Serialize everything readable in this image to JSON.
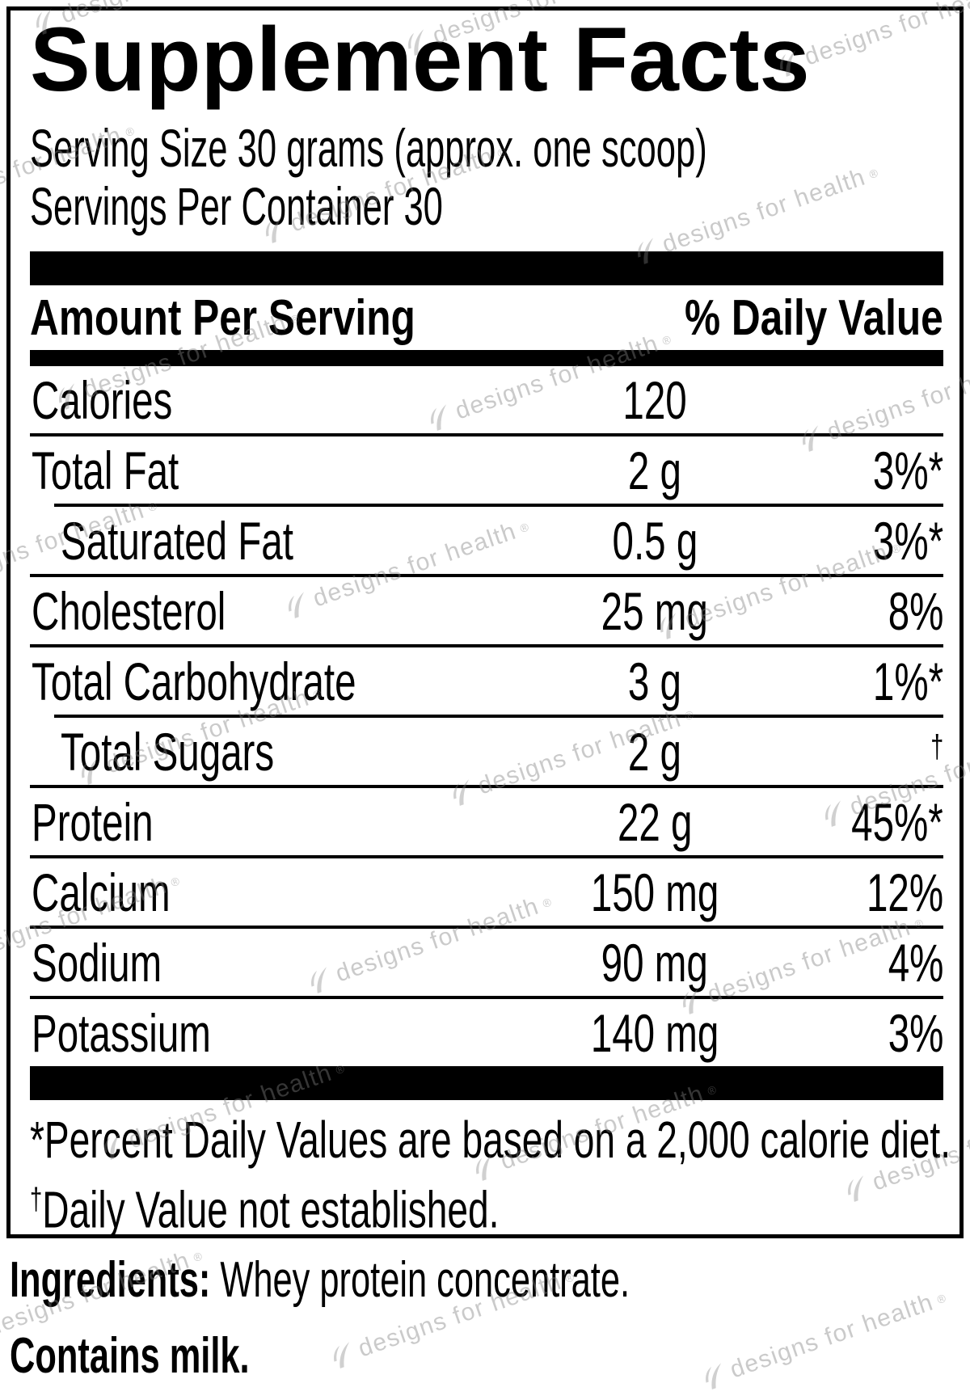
{
  "title": "Supplement Facts",
  "serving": {
    "size_line": "Serving Size 30 grams (approx. one scoop)",
    "per_container_line": "Servings Per Container 30"
  },
  "table": {
    "header": {
      "amount_label": "Amount Per Serving",
      "dv_label": "% Daily Value"
    },
    "rows": [
      {
        "name": "Calories",
        "amount": "120",
        "dv": "",
        "indent": false
      },
      {
        "name": "Total Fat",
        "amount": "2 g",
        "dv": "3%*",
        "indent": false
      },
      {
        "name": "Saturated Fat",
        "amount": "0.5 g",
        "dv": "3%*",
        "indent": true
      },
      {
        "name": "Cholesterol",
        "amount": "25 mg",
        "dv": "8%",
        "indent": false
      },
      {
        "name": "Total Carbohydrate",
        "amount": "3 g",
        "dv": "1%*",
        "indent": false
      },
      {
        "name": "Total Sugars",
        "amount": "2 g",
        "dv": "†",
        "indent": true
      },
      {
        "name": "Protein",
        "amount": "22 g",
        "dv": "45%*",
        "indent": false
      },
      {
        "name": "Calcium",
        "amount": "150 mg",
        "dv": "12%",
        "indent": false
      },
      {
        "name": "Sodium",
        "amount": "90 mg",
        "dv": "4%",
        "indent": false
      },
      {
        "name": "Potassium",
        "amount": "140 mg",
        "dv": "3%",
        "indent": false
      }
    ]
  },
  "footnotes": {
    "daily_value_note": "*Percent Daily Values are based on a 2,000 calorie diet.",
    "dagger_mark": "†",
    "not_established_note": "Daily Value not established."
  },
  "ingredients": {
    "label": "Ingredients:",
    "text": " Whey protein concentrate."
  },
  "allergen": "Contains milk.",
  "watermark": {
    "text": "designs for health",
    "registered": "®"
  },
  "colors": {
    "text": "#000000",
    "watermark_gray": "#808080",
    "background": "#ffffff"
  }
}
